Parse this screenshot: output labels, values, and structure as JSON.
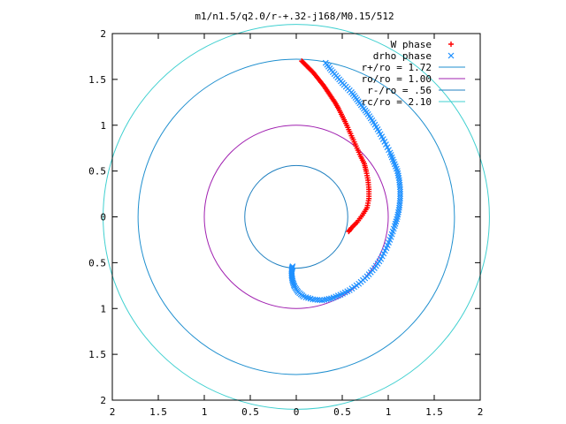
{
  "chart_data": {
    "type": "scatter",
    "title": "m1/n1.5/q2.0/r-+.32-j168/M0.15/512",
    "xlabel": "",
    "ylabel": "",
    "xlim": [
      -2,
      2
    ],
    "ylim": [
      -2,
      2
    ],
    "grid": false,
    "legend_position": "top-right",
    "x_ticks": [
      -2,
      -1.5,
      -1,
      -0.5,
      0,
      0.5,
      1,
      1.5,
      2
    ],
    "y_ticks": [
      -2,
      -1.5,
      -1,
      -0.5,
      0,
      0.5,
      1,
      1.5,
      2
    ],
    "x_tick_labels": [
      "2",
      "1.5",
      "1",
      "0.5",
      "0",
      "0.5",
      "1",
      "1.5",
      "2"
    ],
    "y_tick_labels": [
      "2",
      "1.5",
      "1",
      "0.5",
      "0",
      "0.5",
      "1",
      "1.5",
      "2"
    ],
    "series": [
      {
        "name": "W phase",
        "marker": "+",
        "color": "#ff0000",
        "points": [
          [
            0.06,
            1.7
          ],
          [
            0.1,
            1.66
          ],
          [
            0.14,
            1.62
          ],
          [
            0.18,
            1.58
          ],
          [
            0.22,
            1.53
          ],
          [
            0.26,
            1.48
          ],
          [
            0.3,
            1.43
          ],
          [
            0.34,
            1.37
          ],
          [
            0.38,
            1.31
          ],
          [
            0.42,
            1.25
          ],
          [
            0.46,
            1.18
          ],
          [
            0.5,
            1.1
          ],
          [
            0.54,
            1.02
          ],
          [
            0.58,
            0.93
          ],
          [
            0.62,
            0.84
          ],
          [
            0.66,
            0.75
          ],
          [
            0.7,
            0.66
          ],
          [
            0.74,
            0.58
          ],
          [
            0.76,
            0.5
          ],
          [
            0.78,
            0.4
          ],
          [
            0.79,
            0.3
          ],
          [
            0.79,
            0.2
          ],
          [
            0.77,
            0.1
          ],
          [
            0.72,
            0.02
          ],
          [
            0.66,
            -0.06
          ],
          [
            0.6,
            -0.12
          ],
          [
            0.57,
            -0.16
          ]
        ]
      },
      {
        "name": "drho phase",
        "marker": "x",
        "color": "#1e90ff",
        "points": [
          [
            0.32,
            1.68
          ],
          [
            0.38,
            1.6
          ],
          [
            0.45,
            1.52
          ],
          [
            0.52,
            1.44
          ],
          [
            0.6,
            1.36
          ],
          [
            0.66,
            1.28
          ],
          [
            0.72,
            1.2
          ],
          [
            0.78,
            1.12
          ],
          [
            0.84,
            1.03
          ],
          [
            0.9,
            0.93
          ],
          [
            0.96,
            0.82
          ],
          [
            1.02,
            0.7
          ],
          [
            1.06,
            0.6
          ],
          [
            1.1,
            0.5
          ],
          [
            1.12,
            0.4
          ],
          [
            1.13,
            0.3
          ],
          [
            1.13,
            0.2
          ],
          [
            1.12,
            0.1
          ],
          [
            1.1,
            0.0
          ],
          [
            1.07,
            -0.1
          ],
          [
            1.03,
            -0.22
          ],
          [
            0.98,
            -0.34
          ],
          [
            0.92,
            -0.46
          ],
          [
            0.85,
            -0.56
          ],
          [
            0.77,
            -0.65
          ],
          [
            0.68,
            -0.73
          ],
          [
            0.58,
            -0.8
          ],
          [
            0.48,
            -0.85
          ],
          [
            0.38,
            -0.89
          ],
          [
            0.28,
            -0.91
          ],
          [
            0.18,
            -0.9
          ],
          [
            0.08,
            -0.87
          ],
          [
            0.02,
            -0.82
          ],
          [
            -0.02,
            -0.76
          ],
          [
            -0.04,
            -0.7
          ],
          [
            -0.05,
            -0.64
          ],
          [
            -0.05,
            -0.58
          ],
          [
            -0.04,
            -0.54
          ]
        ]
      },
      {
        "name": "r+/ro = 1.72",
        "kind": "circle",
        "radius": 1.72,
        "color": "#1f8fcf"
      },
      {
        "name": "ro/ro = 1.00",
        "kind": "circle",
        "radius": 1.0,
        "color": "#a020b0"
      },
      {
        "name": "r-/ro = .56",
        "kind": "circle",
        "radius": 0.56,
        "color": "#2080c0"
      },
      {
        "name": "rc/ro = 2.10",
        "kind": "circle",
        "radius": 2.1,
        "color": "#40d0d0"
      }
    ]
  }
}
